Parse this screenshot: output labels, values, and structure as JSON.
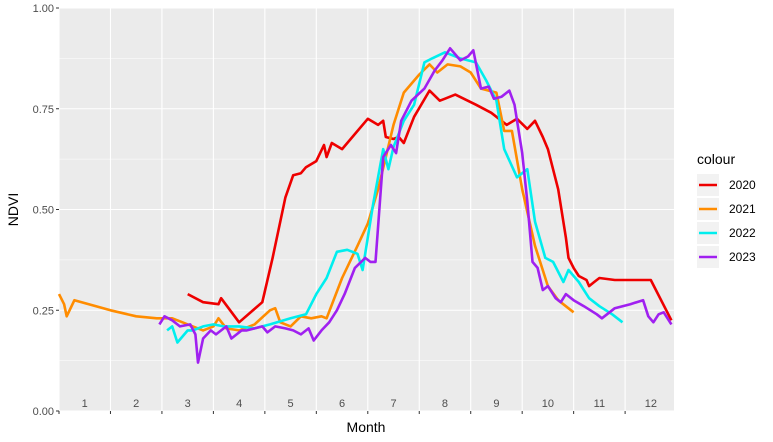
{
  "chart_data": {
    "type": "line",
    "title": "",
    "xlabel": "Month",
    "ylabel": "NDVI",
    "xlim": [
      0.5,
      12.45
    ],
    "ylim": [
      0,
      1
    ],
    "x_ticks": [
      1,
      2,
      3,
      4,
      5,
      6,
      7,
      8,
      9,
      10,
      11,
      12
    ],
    "x_tick_labels": [
      "1",
      "2",
      "3",
      "4",
      "5",
      "6",
      "7",
      "8",
      "9",
      "10",
      "11",
      "12"
    ],
    "y_ticks": [
      0,
      0.25,
      0.5,
      0.75,
      1
    ],
    "y_tick_labels": [
      "0.00",
      "0.25",
      "0.50",
      "0.75",
      "1.00"
    ],
    "grid": true,
    "legend": {
      "title": "colour",
      "position": "right"
    },
    "series": [
      {
        "name": "2020",
        "color": "#ee0000",
        "points": [
          [
            3.0,
            0.29
          ],
          [
            3.3,
            0.27
          ],
          [
            3.6,
            0.265
          ],
          [
            3.65,
            0.28
          ],
          [
            4.0,
            0.22
          ],
          [
            4.45,
            0.27
          ],
          [
            4.65,
            0.38
          ],
          [
            4.9,
            0.53
          ],
          [
            5.05,
            0.585
          ],
          [
            5.2,
            0.59
          ],
          [
            5.3,
            0.605
          ],
          [
            5.5,
            0.62
          ],
          [
            5.65,
            0.66
          ],
          [
            5.7,
            0.63
          ],
          [
            5.8,
            0.665
          ],
          [
            6.0,
            0.65
          ],
          [
            6.5,
            0.725
          ],
          [
            6.7,
            0.71
          ],
          [
            6.8,
            0.72
          ],
          [
            6.85,
            0.68
          ],
          [
            7.0,
            0.675
          ],
          [
            7.1,
            0.68
          ],
          [
            7.2,
            0.665
          ],
          [
            7.4,
            0.73
          ],
          [
            7.7,
            0.795
          ],
          [
            7.9,
            0.77
          ],
          [
            8.0,
            0.775
          ],
          [
            8.2,
            0.785
          ],
          [
            8.6,
            0.76
          ],
          [
            8.9,
            0.74
          ],
          [
            9.2,
            0.71
          ],
          [
            9.4,
            0.725
          ],
          [
            9.6,
            0.7
          ],
          [
            9.75,
            0.72
          ],
          [
            9.9,
            0.68
          ],
          [
            10.0,
            0.65
          ],
          [
            10.2,
            0.55
          ],
          [
            10.35,
            0.43
          ],
          [
            10.4,
            0.38
          ],
          [
            10.5,
            0.355
          ],
          [
            10.6,
            0.335
          ],
          [
            10.75,
            0.325
          ],
          [
            10.8,
            0.31
          ],
          [
            10.9,
            0.32
          ],
          [
            11.0,
            0.33
          ],
          [
            11.3,
            0.325
          ],
          [
            12.0,
            0.325
          ],
          [
            12.4,
            0.225
          ]
        ]
      },
      {
        "name": "2021",
        "color": "#ff8c00",
        "points": [
          [
            0.5,
            0.29
          ],
          [
            0.6,
            0.265
          ],
          [
            0.65,
            0.235
          ],
          [
            0.8,
            0.275
          ],
          [
            1.5,
            0.25
          ],
          [
            2.0,
            0.235
          ],
          [
            2.4,
            0.23
          ],
          [
            2.7,
            0.23
          ],
          [
            2.9,
            0.22
          ],
          [
            3.0,
            0.215
          ],
          [
            3.3,
            0.2
          ],
          [
            3.5,
            0.21
          ],
          [
            3.6,
            0.23
          ],
          [
            3.75,
            0.205
          ],
          [
            4.0,
            0.2
          ],
          [
            4.3,
            0.215
          ],
          [
            4.6,
            0.25
          ],
          [
            4.7,
            0.255
          ],
          [
            4.8,
            0.22
          ],
          [
            5.0,
            0.21
          ],
          [
            5.2,
            0.235
          ],
          [
            5.4,
            0.23
          ],
          [
            5.6,
            0.235
          ],
          [
            5.7,
            0.23
          ],
          [
            6.0,
            0.33
          ],
          [
            6.3,
            0.41
          ],
          [
            6.5,
            0.465
          ],
          [
            6.7,
            0.55
          ],
          [
            7.0,
            0.71
          ],
          [
            7.2,
            0.79
          ],
          [
            7.5,
            0.835
          ],
          [
            7.7,
            0.86
          ],
          [
            7.85,
            0.84
          ],
          [
            8.05,
            0.86
          ],
          [
            8.3,
            0.855
          ],
          [
            8.5,
            0.84
          ],
          [
            8.7,
            0.8
          ],
          [
            9.0,
            0.79
          ],
          [
            9.15,
            0.695
          ],
          [
            9.3,
            0.695
          ],
          [
            9.5,
            0.55
          ],
          [
            9.75,
            0.41
          ],
          [
            10.0,
            0.31
          ],
          [
            10.2,
            0.275
          ],
          [
            10.5,
            0.245
          ]
        ]
      },
      {
        "name": "2022",
        "color": "#00eeee",
        "points": [
          [
            2.6,
            0.2
          ],
          [
            2.7,
            0.21
          ],
          [
            2.8,
            0.17
          ],
          [
            3.0,
            0.2
          ],
          [
            3.1,
            0.2
          ],
          [
            3.3,
            0.21
          ],
          [
            3.5,
            0.215
          ],
          [
            3.7,
            0.21
          ],
          [
            4.0,
            0.21
          ],
          [
            4.3,
            0.205
          ],
          [
            4.6,
            0.215
          ],
          [
            5.0,
            0.23
          ],
          [
            5.3,
            0.24
          ],
          [
            5.5,
            0.29
          ],
          [
            5.7,
            0.33
          ],
          [
            5.9,
            0.395
          ],
          [
            6.1,
            0.4
          ],
          [
            6.3,
            0.39
          ],
          [
            6.4,
            0.35
          ],
          [
            6.6,
            0.51
          ],
          [
            6.8,
            0.65
          ],
          [
            6.9,
            0.6
          ],
          [
            7.0,
            0.655
          ],
          [
            7.2,
            0.72
          ],
          [
            7.4,
            0.76
          ],
          [
            7.6,
            0.865
          ],
          [
            7.75,
            0.875
          ],
          [
            8.0,
            0.89
          ],
          [
            8.3,
            0.875
          ],
          [
            8.6,
            0.865
          ],
          [
            8.8,
            0.82
          ],
          [
            9.0,
            0.77
          ],
          [
            9.15,
            0.65
          ],
          [
            9.4,
            0.58
          ],
          [
            9.6,
            0.6
          ],
          [
            9.75,
            0.47
          ],
          [
            9.95,
            0.38
          ],
          [
            10.1,
            0.37
          ],
          [
            10.3,
            0.32
          ],
          [
            10.4,
            0.35
          ],
          [
            10.6,
            0.32
          ],
          [
            10.7,
            0.3
          ],
          [
            10.8,
            0.28
          ],
          [
            11.0,
            0.26
          ],
          [
            11.25,
            0.24
          ],
          [
            11.45,
            0.22
          ]
        ]
      },
      {
        "name": "2023",
        "color": "#a020f0",
        "points": [
          [
            2.45,
            0.215
          ],
          [
            2.55,
            0.235
          ],
          [
            2.7,
            0.225
          ],
          [
            2.85,
            0.21
          ],
          [
            3.05,
            0.215
          ],
          [
            3.15,
            0.19
          ],
          [
            3.2,
            0.12
          ],
          [
            3.3,
            0.18
          ],
          [
            3.45,
            0.2
          ],
          [
            3.55,
            0.19
          ],
          [
            3.75,
            0.21
          ],
          [
            3.85,
            0.18
          ],
          [
            4.05,
            0.2
          ],
          [
            4.15,
            0.2
          ],
          [
            4.3,
            0.205
          ],
          [
            4.45,
            0.21
          ],
          [
            4.55,
            0.195
          ],
          [
            4.7,
            0.21
          ],
          [
            4.9,
            0.205
          ],
          [
            5.05,
            0.2
          ],
          [
            5.2,
            0.19
          ],
          [
            5.35,
            0.205
          ],
          [
            5.45,
            0.175
          ],
          [
            5.6,
            0.2
          ],
          [
            5.75,
            0.22
          ],
          [
            5.9,
            0.25
          ],
          [
            6.05,
            0.29
          ],
          [
            6.25,
            0.355
          ],
          [
            6.45,
            0.38
          ],
          [
            6.55,
            0.37
          ],
          [
            6.65,
            0.37
          ],
          [
            6.8,
            0.63
          ],
          [
            6.95,
            0.66
          ],
          [
            7.05,
            0.64
          ],
          [
            7.15,
            0.72
          ],
          [
            7.35,
            0.77
          ],
          [
            7.6,
            0.8
          ],
          [
            7.8,
            0.845
          ],
          [
            7.95,
            0.87
          ],
          [
            8.1,
            0.9
          ],
          [
            8.3,
            0.87
          ],
          [
            8.45,
            0.88
          ],
          [
            8.55,
            0.895
          ],
          [
            8.7,
            0.8
          ],
          [
            8.85,
            0.805
          ],
          [
            8.95,
            0.775
          ],
          [
            9.1,
            0.78
          ],
          [
            9.25,
            0.795
          ],
          [
            9.35,
            0.76
          ],
          [
            9.5,
            0.64
          ],
          [
            9.6,
            0.52
          ],
          [
            9.7,
            0.37
          ],
          [
            9.8,
            0.355
          ],
          [
            9.9,
            0.3
          ],
          [
            10.0,
            0.31
          ],
          [
            10.15,
            0.28
          ],
          [
            10.25,
            0.27
          ],
          [
            10.35,
            0.29
          ],
          [
            10.5,
            0.275
          ],
          [
            10.7,
            0.26
          ],
          [
            10.95,
            0.24
          ],
          [
            11.05,
            0.23
          ],
          [
            11.3,
            0.255
          ],
          [
            11.6,
            0.265
          ],
          [
            11.85,
            0.275
          ],
          [
            11.95,
            0.235
          ],
          [
            12.05,
            0.22
          ],
          [
            12.15,
            0.24
          ],
          [
            12.25,
            0.245
          ],
          [
            12.4,
            0.215
          ]
        ]
      }
    ]
  }
}
